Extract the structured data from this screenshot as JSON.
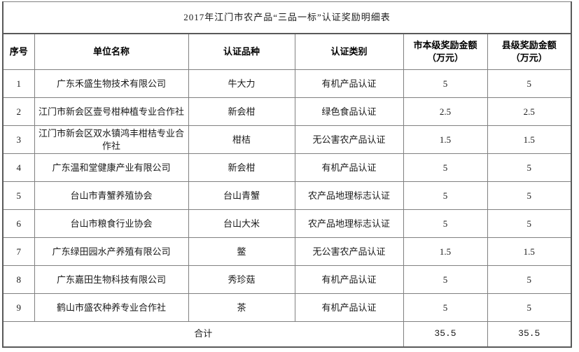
{
  "title": "2017年江门市农产品“三品一标”认证奖励明细表",
  "colors": {
    "border_inner": "#808080",
    "border_outer": "#595959",
    "text": "#1a1a1a",
    "background": "#ffffff"
  },
  "table": {
    "headers": [
      "序号",
      "单位名称",
      "认证品种",
      "认证类别",
      "市本级奖励金额\n（万元）",
      "县级奖励金额\n（万元）"
    ],
    "rows": [
      {
        "no": "1",
        "unit": "广东禾盛生物技术有限公司",
        "variety": "牛大力",
        "category": "有机产品认证",
        "city": "5",
        "county": "5"
      },
      {
        "no": "2",
        "unit": "江门市新会区壹号柑种植专业合作社",
        "variety": "新会柑",
        "category": "绿色食品认证",
        "city": "2.5",
        "county": "2.5"
      },
      {
        "no": "3",
        "unit": "江门市新会区双水镇鸿丰柑桔专业合作社",
        "variety": "柑桔",
        "category": "无公害农产品认证",
        "city": "1.5",
        "county": "1.5"
      },
      {
        "no": "4",
        "unit": "广东温和堂健康产业有限公司",
        "variety": "新会柑",
        "category": "有机产品认证",
        "city": "5",
        "county": "5"
      },
      {
        "no": "5",
        "unit": "台山市青蟹养殖协会",
        "variety": "台山青蟹",
        "category": "农产品地理标志认证",
        "city": "5",
        "county": "5"
      },
      {
        "no": "6",
        "unit": "台山市粮食行业协会",
        "variety": "台山大米",
        "category": "农产品地理标志认证",
        "city": "5",
        "county": "5"
      },
      {
        "no": "7",
        "unit": "广东绿田园水产养殖有限公司",
        "variety": "鳖",
        "category": "无公害农产品认证",
        "city": "1.5",
        "county": "1.5"
      },
      {
        "no": "8",
        "unit": "广东嘉田生物科技有限公司",
        "variety": "秀珍菇",
        "category": "有机产品认证",
        "city": "5",
        "county": "5"
      },
      {
        "no": "9",
        "unit": "鹤山市盛农种养专业合作社",
        "variety": "茶",
        "category": "有机产品认证",
        "city": "5",
        "county": "5"
      }
    ],
    "total": {
      "label": "合计",
      "city": "35.5",
      "county": "35.5"
    }
  }
}
